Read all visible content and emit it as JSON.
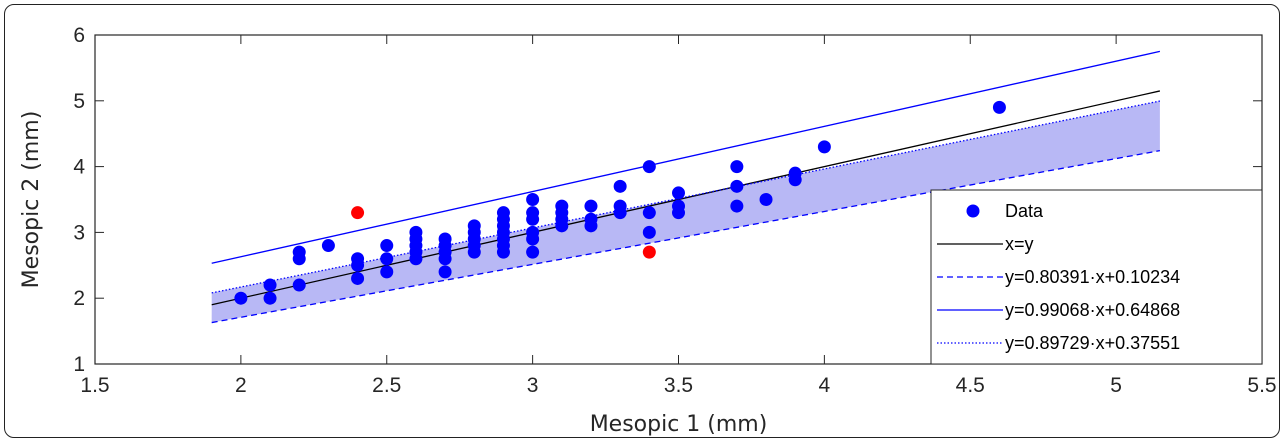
{
  "chart_data": {
    "type": "scatter",
    "title": "",
    "xlabel": "Mesopic 1 (mm)",
    "ylabel": "Mesopic 2 (mm)",
    "xlim": [
      1.5,
      5.5
    ],
    "ylim": [
      1,
      6
    ],
    "xticks": [
      "1.5",
      "2",
      "2.5",
      "3",
      "3.5",
      "4",
      "4.5",
      "5",
      "5.5"
    ],
    "yticks": [
      "1",
      "2",
      "3",
      "4",
      "5",
      "6"
    ],
    "grid": false,
    "legend_position": "bottom-right",
    "colors": {
      "data": "#0000ff",
      "outlier": "#ff0000",
      "identity": "#000000",
      "fit": "#0000ff",
      "band_fill": "#b8b8f5"
    },
    "band_x": [
      1.9,
      5.15
    ],
    "series": [
      {
        "name": "Data",
        "kind": "points",
        "points": [
          [
            2.0,
            2.0
          ],
          [
            2.1,
            2.0
          ],
          [
            2.1,
            2.2
          ],
          [
            2.2,
            2.2
          ],
          [
            2.2,
            2.6
          ],
          [
            2.2,
            2.7
          ],
          [
            2.3,
            2.8
          ],
          [
            2.4,
            2.3
          ],
          [
            2.4,
            2.5
          ],
          [
            2.4,
            2.6
          ],
          [
            2.5,
            2.4
          ],
          [
            2.5,
            2.6
          ],
          [
            2.5,
            2.8
          ],
          [
            2.6,
            2.6
          ],
          [
            2.6,
            2.7
          ],
          [
            2.6,
            2.8
          ],
          [
            2.6,
            2.9
          ],
          [
            2.6,
            3.0
          ],
          [
            2.7,
            2.4
          ],
          [
            2.7,
            2.6
          ],
          [
            2.7,
            2.7
          ],
          [
            2.7,
            2.8
          ],
          [
            2.7,
            2.9
          ],
          [
            2.8,
            2.7
          ],
          [
            2.8,
            2.8
          ],
          [
            2.8,
            2.9
          ],
          [
            2.8,
            3.0
          ],
          [
            2.8,
            3.1
          ],
          [
            2.9,
            2.7
          ],
          [
            2.9,
            2.8
          ],
          [
            2.9,
            2.9
          ],
          [
            2.9,
            3.0
          ],
          [
            2.9,
            3.1
          ],
          [
            2.9,
            3.2
          ],
          [
            2.9,
            3.3
          ],
          [
            3.0,
            2.7
          ],
          [
            3.0,
            2.9
          ],
          [
            3.0,
            3.0
          ],
          [
            3.0,
            3.2
          ],
          [
            3.0,
            3.3
          ],
          [
            3.0,
            3.5
          ],
          [
            3.1,
            3.1
          ],
          [
            3.1,
            3.2
          ],
          [
            3.1,
            3.3
          ],
          [
            3.1,
            3.4
          ],
          [
            3.2,
            3.1
          ],
          [
            3.2,
            3.2
          ],
          [
            3.2,
            3.4
          ],
          [
            3.3,
            3.3
          ],
          [
            3.3,
            3.4
          ],
          [
            3.3,
            3.7
          ],
          [
            3.4,
            3.0
          ],
          [
            3.4,
            3.3
          ],
          [
            3.4,
            4.0
          ],
          [
            3.5,
            3.3
          ],
          [
            3.5,
            3.4
          ],
          [
            3.5,
            3.6
          ],
          [
            3.7,
            3.4
          ],
          [
            3.7,
            3.7
          ],
          [
            3.7,
            4.0
          ],
          [
            3.8,
            3.5
          ],
          [
            3.9,
            3.8
          ],
          [
            3.9,
            3.9
          ],
          [
            4.0,
            4.3
          ],
          [
            4.6,
            4.9
          ]
        ]
      },
      {
        "name": "",
        "kind": "outliers",
        "points": [
          [
            2.4,
            3.3
          ],
          [
            3.4,
            2.7
          ]
        ]
      },
      {
        "name": "x=y",
        "kind": "line",
        "slope": 1,
        "intercept": 0,
        "style": "solid",
        "color": "#000000"
      },
      {
        "name": "y=0.80391·x+0.10234",
        "kind": "line",
        "slope": 0.80391,
        "intercept": 0.10234,
        "style": "dashed",
        "color": "#0000ff"
      },
      {
        "name": "y=0.99068·x+0.64868",
        "kind": "line",
        "slope": 0.99068,
        "intercept": 0.64868,
        "style": "solid",
        "color": "#0000ff"
      },
      {
        "name": "y=0.89729·x+0.37551",
        "kind": "line",
        "slope": 0.89729,
        "intercept": 0.37551,
        "style": "dotted",
        "color": "#0000ff"
      }
    ]
  }
}
